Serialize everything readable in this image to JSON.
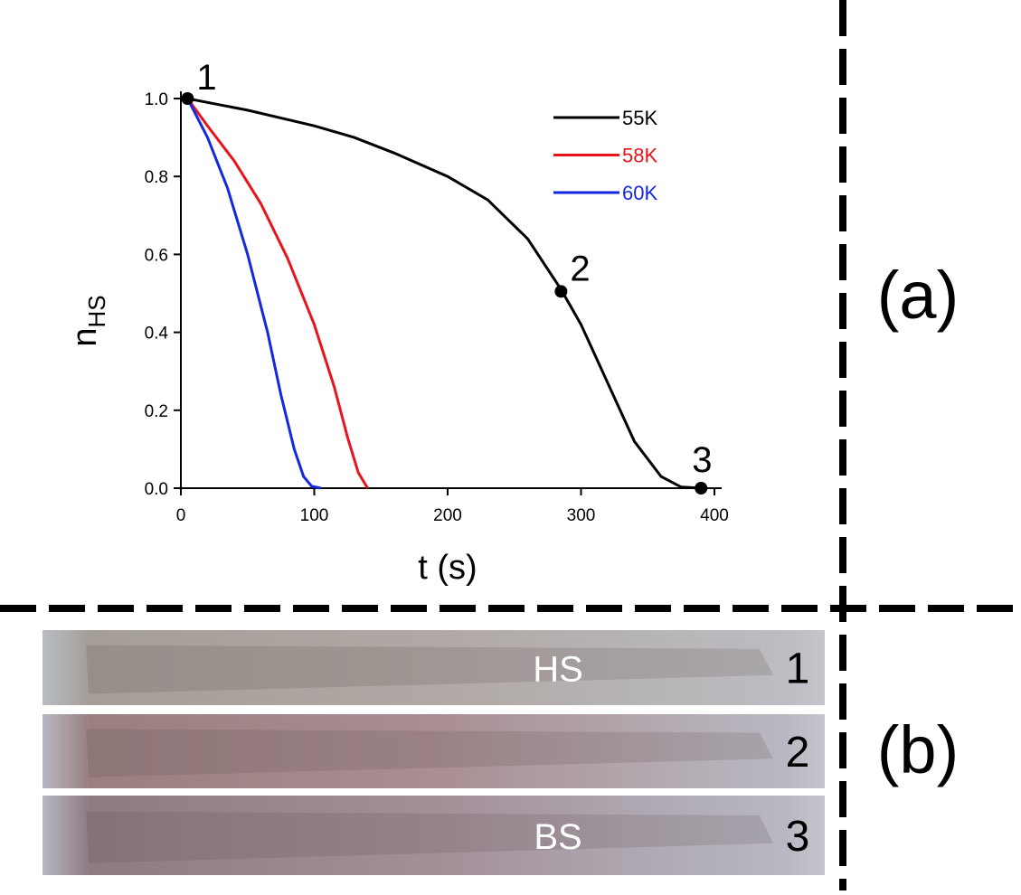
{
  "chart_data": {
    "type": "line",
    "xlabel": "t (s)",
    "ylabel": "n",
    "ylabel_subscript": "HS",
    "xlim": [
      0,
      400
    ],
    "xticks": [
      0,
      100,
      200,
      300,
      400
    ],
    "ylim": [
      0,
      1
    ],
    "yticks": [
      {
        "value": 0,
        "label": "0.0"
      },
      0.2,
      0.4,
      0.6,
      0.8,
      {
        "value": 1,
        "label": "1.0"
      }
    ],
    "grid": false,
    "legend": "upper right",
    "series": [
      {
        "name": "55K",
        "color": "#000000",
        "x": [
          5,
          20,
          50,
          100,
          130,
          160,
          200,
          230,
          260,
          285,
          300,
          320,
          340,
          360,
          375,
          390
        ],
        "values": [
          1.0,
          0.99,
          0.97,
          0.93,
          0.9,
          0.86,
          0.8,
          0.74,
          0.64,
          0.51,
          0.42,
          0.27,
          0.12,
          0.03,
          0.003,
          0.0
        ]
      },
      {
        "name": "58K",
        "color": "#e8141b",
        "x": [
          5,
          20,
          40,
          60,
          80,
          100,
          115,
          125,
          133,
          140
        ],
        "values": [
          1.0,
          0.93,
          0.84,
          0.73,
          0.59,
          0.42,
          0.26,
          0.13,
          0.04,
          0.0
        ]
      },
      {
        "name": "60K",
        "color": "#1428e0",
        "x": [
          5,
          20,
          35,
          50,
          65,
          75,
          85,
          92,
          98,
          105
        ],
        "values": [
          1.0,
          0.9,
          0.77,
          0.6,
          0.4,
          0.24,
          0.1,
          0.03,
          0.005,
          0.0
        ]
      }
    ],
    "points": {
      "x": [
        5,
        285,
        390
      ],
      "values": [
        1.0,
        0.505,
        0.0
      ],
      "labels": [
        "1",
        "2",
        "3"
      ]
    }
  },
  "panel_labels": [
    "(a)",
    "(b)"
  ],
  "photos": [
    {
      "state": "HS",
      "number": "1"
    },
    {
      "state": null,
      "number": "2"
    },
    {
      "state": "BS",
      "number": "3"
    }
  ]
}
